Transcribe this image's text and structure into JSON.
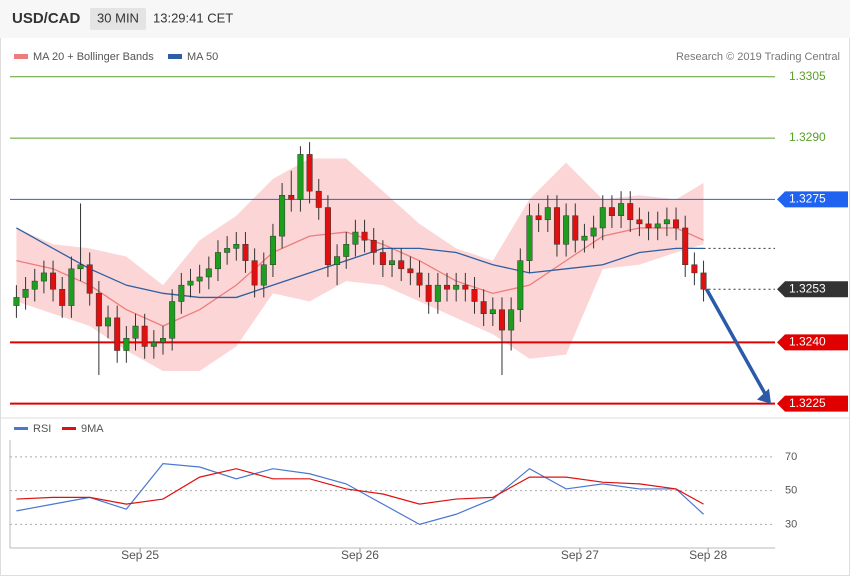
{
  "chart_data": {
    "type": "candlestick",
    "title": "USD/CAD",
    "timeframe": "30 MIN",
    "time": "13:29:41 CET",
    "credit": "Research © 2019 Trading Central",
    "up_color": "#1e9e1e",
    "down_color": "#e01010",
    "xlim": [
      -14.2,
      69.3
    ],
    "xticks": [
      {
        "value": 0,
        "label": "Sep 25"
      },
      {
        "value": 24,
        "label": "Sep 26"
      },
      {
        "value": 48,
        "label": "Sep 27"
      },
      {
        "value": 62,
        "label": "Sep 28"
      }
    ],
    "ylim": [
      1.3221,
      1.3314
    ],
    "x": [
      -13.5,
      -12.5,
      -11.5,
      -10.5,
      -9.5,
      -8.5,
      -7.5,
      -6.5,
      -5.5,
      -4.5,
      -3.5,
      -2.5,
      -1.5,
      -0.5,
      0.5,
      1.5,
      2.5,
      3.5,
      4.5,
      5.5,
      6.5,
      7.5,
      8.5,
      9.5,
      10.5,
      11.5,
      12.5,
      13.5,
      14.5,
      15.5,
      16.5,
      17.5,
      18.5,
      19.5,
      20.5,
      21.5,
      22.5,
      23.5,
      24.5,
      25.5,
      26.5,
      27.5,
      28.5,
      29.5,
      30.5,
      31.5,
      32.5,
      33.5,
      34.5,
      35.5,
      36.5,
      37.5,
      38.5,
      39.5,
      40.5,
      41.5,
      42.5,
      43.5,
      44.5,
      45.5,
      46.5,
      47.5,
      48.5,
      49.5,
      50.5,
      51.5,
      52.5,
      53.5,
      54.5,
      55.5,
      56.5,
      57.5,
      58.5,
      59.5,
      60.5,
      61.5
    ],
    "open": [
      1.3249,
      1.3251,
      1.3253,
      1.3255,
      1.3257,
      1.3253,
      1.3249,
      1.3258,
      1.3259,
      1.3252,
      1.3244,
      1.3246,
      1.3238,
      1.3241,
      1.3244,
      1.3239,
      1.324,
      1.3241,
      1.325,
      1.3254,
      1.3255,
      1.3256,
      1.3258,
      1.3262,
      1.3263,
      1.3264,
      1.326,
      1.3254,
      1.3259,
      1.3266,
      1.3276,
      1.3275,
      1.3286,
      1.3277,
      1.3273,
      1.3259,
      1.3261,
      1.3264,
      1.3267,
      1.3265,
      1.3262,
      1.3259,
      1.326,
      1.3258,
      1.3257,
      1.3254,
      1.325,
      1.3254,
      1.3253,
      1.3254,
      1.3253,
      1.325,
      1.3247,
      1.3248,
      1.3243,
      1.3248,
      1.326,
      1.3271,
      1.327,
      1.3273,
      1.3264,
      1.3271,
      1.3265,
      1.3266,
      1.3268,
      1.3273,
      1.3271,
      1.3274,
      1.327,
      1.3269,
      1.3268,
      1.3269,
      1.327,
      1.3268,
      1.3259,
      1.3257
    ],
    "high": [
      1.3254,
      1.3256,
      1.3258,
      1.326,
      1.326,
      1.3256,
      1.3261,
      1.3274,
      1.3262,
      1.3255,
      1.3249,
      1.3249,
      1.3244,
      1.3247,
      1.3247,
      1.3243,
      1.3244,
      1.3253,
      1.3257,
      1.3258,
      1.3259,
      1.3261,
      1.3265,
      1.3266,
      1.3267,
      1.3267,
      1.3263,
      1.3262,
      1.3269,
      1.3279,
      1.3282,
      1.3288,
      1.3289,
      1.328,
      1.3276,
      1.3264,
      1.3267,
      1.327,
      1.327,
      1.3268,
      1.3265,
      1.3263,
      1.3263,
      1.3261,
      1.326,
      1.3257,
      1.3257,
      1.3257,
      1.3257,
      1.3257,
      1.3256,
      1.3253,
      1.3251,
      1.3251,
      1.3251,
      1.3263,
      1.3274,
      1.3274,
      1.3276,
      1.3276,
      1.3274,
      1.3274,
      1.3269,
      1.3271,
      1.3276,
      1.3276,
      1.3277,
      1.3277,
      1.3273,
      1.3272,
      1.3272,
      1.3273,
      1.3273,
      1.3271,
      1.3262,
      1.326
    ],
    "low": [
      1.3246,
      1.3248,
      1.325,
      1.3252,
      1.325,
      1.3246,
      1.3246,
      1.3255,
      1.3249,
      1.3232,
      1.3241,
      1.3235,
      1.3235,
      1.3238,
      1.3236,
      1.3236,
      1.3237,
      1.3238,
      1.3247,
      1.3251,
      1.3252,
      1.3253,
      1.3255,
      1.3259,
      1.326,
      1.3257,
      1.3251,
      1.3251,
      1.3256,
      1.3263,
      1.3272,
      1.3272,
      1.3274,
      1.327,
      1.3256,
      1.3254,
      1.3258,
      1.3261,
      1.3262,
      1.3259,
      1.3256,
      1.3256,
      1.3255,
      1.3254,
      1.3251,
      1.3247,
      1.3247,
      1.325,
      1.325,
      1.325,
      1.3247,
      1.3244,
      1.3244,
      1.3232,
      1.3238,
      1.3245,
      1.3257,
      1.3267,
      1.3267,
      1.3261,
      1.3261,
      1.3262,
      1.3262,
      1.3263,
      1.3265,
      1.3268,
      1.3268,
      1.3267,
      1.3266,
      1.3265,
      1.3265,
      1.3266,
      1.3265,
      1.3256,
      1.3254,
      1.325
    ],
    "close": [
      1.3251,
      1.3253,
      1.3255,
      1.3257,
      1.3253,
      1.3249,
      1.3258,
      1.3259,
      1.3252,
      1.3244,
      1.3246,
      1.3238,
      1.3241,
      1.3244,
      1.3239,
      1.324,
      1.3241,
      1.325,
      1.3254,
      1.3255,
      1.3256,
      1.3258,
      1.3262,
      1.3263,
      1.3264,
      1.326,
      1.3254,
      1.3259,
      1.3266,
      1.3276,
      1.3275,
      1.3286,
      1.3277,
      1.3273,
      1.3259,
      1.3261,
      1.3264,
      1.3267,
      1.3265,
      1.3262,
      1.3259,
      1.326,
      1.3258,
      1.3257,
      1.3254,
      1.325,
      1.3254,
      1.3253,
      1.3254,
      1.3253,
      1.325,
      1.3247,
      1.3248,
      1.3243,
      1.3248,
      1.326,
      1.3271,
      1.327,
      1.3273,
      1.3264,
      1.3271,
      1.3265,
      1.3266,
      1.3268,
      1.3273,
      1.3271,
      1.3274,
      1.327,
      1.3269,
      1.3268,
      1.3269,
      1.327,
      1.3268,
      1.3259,
      1.3257,
      1.3253
    ],
    "indicators": {
      "x": [
        -13.5,
        -9.5,
        -5.5,
        -1.5,
        2.5,
        6.5,
        10.5,
        14.5,
        18.5,
        22.5,
        26.5,
        30.5,
        34.5,
        38.5,
        42.5,
        46.5,
        50.5,
        54.5,
        58.5,
        61.5
      ],
      "band_color": "#fcd6d6",
      "upper": [
        1.3268,
        1.3264,
        1.3263,
        1.3261,
        1.3254,
        1.3265,
        1.3271,
        1.328,
        1.3285,
        1.3285,
        1.3277,
        1.3269,
        1.3263,
        1.326,
        1.3275,
        1.3284,
        1.3275,
        1.3276,
        1.3275,
        1.3279
      ],
      "lower": [
        1.325,
        1.3247,
        1.3244,
        1.3238,
        1.3233,
        1.3233,
        1.3239,
        1.3252,
        1.325,
        1.3255,
        1.3254,
        1.325,
        1.3246,
        1.3242,
        1.3236,
        1.3237,
        1.3258,
        1.3259,
        1.3262,
        1.3264
      ],
      "series": [
        {
          "name": "MA 20 + Bollinger Bands",
          "color": "#ef7c7c",
          "values": [
            1.326,
            1.3258,
            1.3254,
            1.3248,
            1.3244,
            1.3248,
            1.3254,
            1.3262,
            1.3266,
            1.3267,
            1.3264,
            1.326,
            1.3255,
            1.3252,
            1.3254,
            1.326,
            1.3266,
            1.3268,
            1.3268,
            1.3265
          ]
        },
        {
          "name": "MA 50",
          "color": "#2e5fa3",
          "values": [
            1.3268,
            1.3263,
            1.3258,
            1.3254,
            1.3252,
            1.3251,
            1.3251,
            1.3254,
            1.3257,
            1.326,
            1.3263,
            1.3263,
            1.3262,
            1.3259,
            1.3257,
            1.3258,
            1.3259,
            1.3262,
            1.3263,
            1.3263
          ]
        }
      ]
    },
    "levels": [
      {
        "value": 1.3305,
        "label": "1.3305",
        "color": "#5aa02c",
        "box": false,
        "line": "thin"
      },
      {
        "value": 1.329,
        "label": "1.3290",
        "color": "#5aa02c",
        "box": false,
        "line": "thin"
      },
      {
        "value": 1.3275,
        "label": "1.3275",
        "color": "#1f63f0",
        "box": true,
        "line": "thin"
      },
      {
        "value": 1.3253,
        "label": "1.3253",
        "color": "#333333",
        "box": true,
        "line": "dotted"
      },
      {
        "value": 1.324,
        "label": "1.3240",
        "color": "#e00000",
        "box": true,
        "line": "thick"
      },
      {
        "value": 1.3225,
        "label": "1.3225",
        "color": "#e00000",
        "box": true,
        "line": "thick"
      }
    ],
    "rsi": {
      "type": "line",
      "x": [
        -13.5,
        -9.5,
        -5.5,
        -1.5,
        2.5,
        6.5,
        10.5,
        14.5,
        18.5,
        22.5,
        26.5,
        30.5,
        34.5,
        38.5,
        42.5,
        46.5,
        50.5,
        54.5,
        58.5,
        61.5
      ],
      "ylim": [
        16,
        80
      ],
      "yticks": [
        30,
        50,
        70
      ],
      "series": [
        {
          "name": "RSI",
          "color": "#4a78d0",
          "values": [
            38,
            42,
            46,
            39,
            66,
            64,
            57,
            63,
            60,
            54,
            42,
            30,
            36,
            45,
            63,
            51,
            54,
            51,
            51,
            36
          ]
        },
        {
          "name": "9MA",
          "color": "#e01010",
          "values": [
            45,
            46,
            46,
            42,
            45,
            58,
            63,
            57,
            57,
            51,
            48,
            42,
            45,
            46,
            58,
            58,
            55,
            54,
            51,
            42
          ]
        }
      ]
    }
  }
}
